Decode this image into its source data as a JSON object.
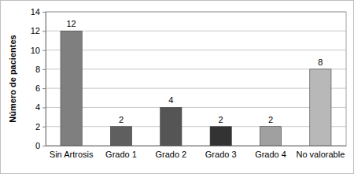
{
  "chart_data": {
    "type": "bar",
    "y_label": "Número de pacientes",
    "categories": [
      "Sin Artrosis",
      "Grado 1",
      "Grado 2",
      "Grado 3",
      "Grado 4",
      "No valorable"
    ],
    "values": [
      12,
      2,
      4,
      2,
      2,
      8
    ],
    "colors": [
      "#7f7f7f",
      "#5f5f5f",
      "#555555",
      "#333333",
      "#a0a0a0",
      "#b8b8b8"
    ],
    "ylim": [
      0,
      14
    ],
    "yticks": [
      0,
      2,
      4,
      6,
      8,
      10,
      12,
      14
    ],
    "grid": true,
    "data_labels": true
  }
}
